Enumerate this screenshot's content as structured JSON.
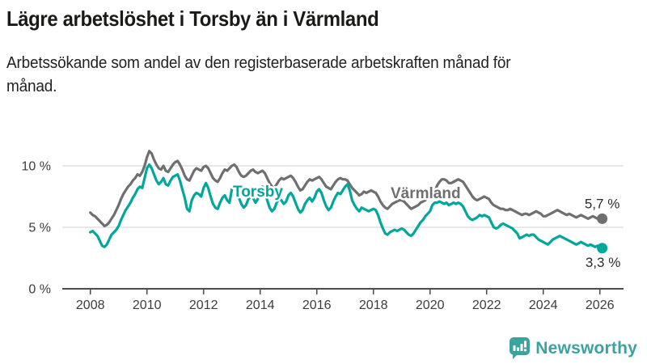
{
  "header": {
    "title": "Lägre arbetslöshet i Torsby än i Värmland",
    "subtitle": "Arbetssökande som andel av den registerbaserade arbetskraften månad för månad."
  },
  "branding": {
    "wordmark": "Newsworthy",
    "logo_icon": "speech-bubble-bar-chart-icon",
    "brand_color": "#3BA39E"
  },
  "chart_data": {
    "type": "line",
    "title": "Lägre arbetslöshet i Torsby än i Värmland",
    "subtitle": "Arbetssökande som andel av den registerbaserade arbetskraften månad för månad.",
    "frequency": "monthly",
    "x_start_year": 2008,
    "x_start_month": 1,
    "x_end_year": 2026,
    "x_end_month": 2,
    "x_ticks": [
      2008,
      2010,
      2012,
      2014,
      2016,
      2018,
      2020,
      2022,
      2024,
      2026
    ],
    "y_ticks": [
      {
        "value": 0,
        "label": "0 %"
      },
      {
        "value": 5,
        "label": "5 %"
      },
      {
        "value": 10,
        "label": "10 %"
      }
    ],
    "ylim": [
      0,
      12
    ],
    "grid": "horizontal",
    "legend": "inline-labels",
    "axis_color": "#4d4d4d",
    "grid_color": "#d9d9d9",
    "series": [
      {
        "name": "Värmland",
        "color": "#6F6F71",
        "end_label": "5,7 %",
        "end_value": 5.7,
        "values": [
          6.2,
          6.0,
          5.9,
          5.7,
          5.5,
          5.3,
          5.1,
          5.2,
          5.4,
          5.7,
          6.0,
          6.4,
          6.8,
          7.3,
          7.7,
          8.0,
          8.3,
          8.5,
          8.8,
          9.0,
          9.3,
          9.2,
          9.5,
          10.0,
          10.7,
          11.2,
          11.0,
          10.5,
          10.1,
          9.8,
          9.7,
          10.0,
          9.6,
          9.5,
          9.8,
          10.1,
          10.3,
          10.4,
          10.1,
          9.7,
          9.2,
          8.9,
          8.8,
          9.2,
          9.6,
          9.8,
          9.7,
          9.6,
          9.9,
          10.0,
          9.8,
          9.4,
          9.0,
          8.8,
          8.7,
          9.0,
          9.4,
          9.7,
          9.6,
          9.8,
          10.0,
          10.1,
          9.9,
          9.5,
          9.2,
          9.1,
          9.2,
          9.4,
          9.6,
          9.7,
          9.5,
          9.4,
          9.5,
          9.6,
          9.4,
          9.0,
          8.6,
          8.3,
          8.2,
          8.5,
          8.8,
          9.0,
          8.9,
          9.0,
          9.1,
          9.2,
          9.0,
          8.7,
          8.3,
          8.0,
          8.1,
          8.4,
          8.7,
          8.9,
          8.8,
          8.9,
          9.0,
          9.1,
          8.9,
          8.6,
          8.3,
          8.2,
          8.1,
          8.4,
          8.7,
          8.9,
          9.0,
          8.9,
          8.9,
          8.8,
          8.5,
          8.2,
          8.0,
          7.8,
          7.6,
          7.7,
          7.9,
          7.8,
          7.9,
          8.0,
          7.9,
          7.8,
          7.5,
          7.1,
          6.8,
          6.6,
          6.5,
          6.7,
          6.9,
          7.0,
          7.1,
          7.2,
          7.2,
          7.1,
          6.9,
          6.7,
          6.5,
          6.6,
          6.7,
          6.8,
          7.0,
          7.1,
          7.2,
          7.4,
          7.5,
          7.6,
          7.9,
          8.4,
          8.7,
          8.9,
          8.9,
          8.8,
          8.6,
          8.6,
          8.7,
          8.8,
          8.9,
          8.8,
          8.7,
          8.4,
          8.1,
          7.8,
          7.5,
          7.3,
          7.2,
          7.3,
          7.4,
          7.5,
          7.4,
          7.3,
          7.0,
          6.8,
          6.7,
          6.6,
          6.5,
          6.5,
          6.4,
          6.4,
          6.5,
          6.4,
          6.3,
          6.2,
          6.1,
          6.0,
          6.1,
          6.1,
          6.0,
          6.1,
          6.2,
          6.3,
          6.2,
          6.1,
          5.9,
          5.9,
          6.0,
          6.1,
          6.2,
          6.3,
          6.4,
          6.3,
          6.2,
          6.1,
          6.0,
          6.1,
          6.0,
          5.9,
          5.8,
          5.9,
          6.0,
          5.9,
          5.8,
          5.7,
          5.8,
          5.9,
          5.8,
          5.7,
          5.7,
          5.7
        ]
      },
      {
        "name": "Torsby",
        "color": "#00A79B",
        "end_label": "3,3 %",
        "end_value": 3.3,
        "values": [
          4.6,
          4.7,
          4.5,
          4.3,
          3.9,
          3.5,
          3.4,
          3.6,
          4.0,
          4.4,
          4.6,
          4.8,
          5.1,
          5.6,
          6.0,
          6.4,
          6.7,
          7.0,
          7.4,
          7.7,
          8.1,
          8.3,
          8.2,
          9.0,
          9.8,
          10.1,
          9.8,
          9.3,
          8.8,
          8.5,
          8.7,
          9.0,
          8.5,
          8.4,
          8.8,
          9.1,
          9.2,
          9.3,
          8.8,
          8.1,
          7.4,
          6.5,
          6.3,
          7.2,
          7.6,
          7.8,
          7.7,
          7.5,
          8.2,
          8.6,
          8.2,
          7.5,
          6.9,
          6.6,
          6.5,
          7.0,
          7.4,
          7.6,
          7.2,
          7.0,
          8.1,
          8.4,
          8.0,
          7.4,
          6.9,
          6.6,
          6.8,
          7.3,
          7.5,
          7.4,
          7.0,
          7.3,
          8.0,
          8.3,
          7.9,
          7.2,
          6.6,
          6.3,
          6.5,
          7.0,
          7.3,
          7.2,
          6.9,
          7.1,
          7.6,
          7.8,
          7.5,
          7.0,
          6.5,
          6.2,
          6.4,
          6.9,
          7.2,
          7.4,
          7.1,
          7.4,
          7.9,
          8.1,
          7.8,
          7.2,
          6.7,
          6.4,
          6.6,
          7.1,
          7.5,
          7.8,
          7.7,
          8.0,
          8.3,
          8.5,
          8.0,
          7.2,
          6.8,
          6.5,
          6.3,
          6.6,
          6.5,
          6.4,
          6.3,
          6.4,
          6.5,
          6.4,
          6.0,
          5.4,
          4.9,
          4.5,
          4.4,
          4.6,
          4.7,
          4.8,
          4.7,
          4.8,
          4.9,
          4.8,
          4.6,
          4.4,
          4.3,
          4.5,
          4.8,
          5.1,
          5.4,
          5.6,
          5.9,
          6.1,
          6.3,
          6.8,
          7.0,
          7.0,
          7.1,
          7.0,
          6.9,
          7.0,
          6.8,
          6.9,
          7.0,
          6.9,
          7.0,
          6.9,
          6.7,
          6.3,
          5.9,
          5.7,
          5.6,
          5.7,
          5.8,
          6.0,
          5.9,
          6.0,
          5.9,
          5.8,
          5.4,
          5.0,
          4.9,
          5.0,
          5.2,
          5.3,
          5.2,
          5.1,
          5.0,
          4.9,
          4.7,
          4.5,
          4.1,
          4.2,
          4.3,
          4.4,
          4.3,
          4.4,
          4.4,
          4.2,
          4.0,
          3.9,
          3.8,
          3.7,
          3.6,
          3.8,
          4.0,
          4.1,
          4.2,
          4.3,
          4.2,
          4.1,
          4.0,
          3.9,
          3.8,
          3.7,
          3.6,
          3.7,
          3.8,
          3.7,
          3.6,
          3.5,
          3.6,
          3.5,
          3.4,
          3.5,
          3.4,
          3.3
        ]
      }
    ]
  }
}
